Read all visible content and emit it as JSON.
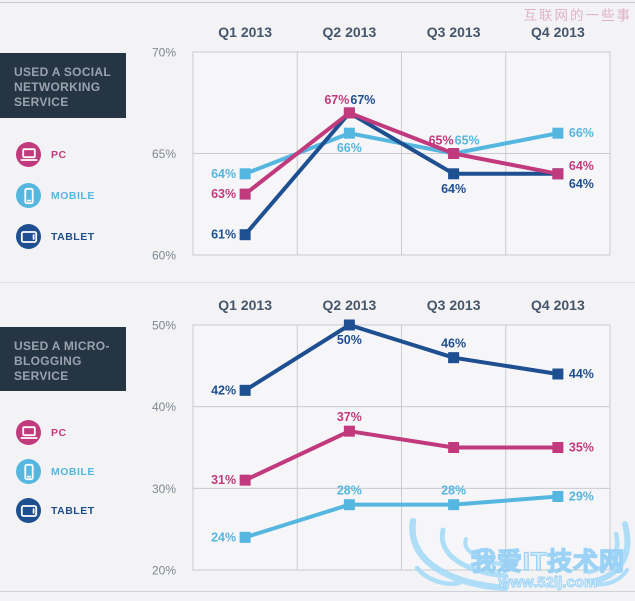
{
  "page": {
    "watermark_top": "互联网的一些事",
    "watermark_bottom_title": "我爱IT技术网",
    "watermark_bottom_url": "www.52ij.com"
  },
  "colors": {
    "pc": "#c23a7e",
    "mobile": "#55b6e0",
    "tablet": "#1e4f90",
    "panel_bg": "#263544",
    "panel_text": "#9aa2ad",
    "header": "#45566b",
    "axis": "#7e8791",
    "grid": "#c9cbce",
    "plot_bg": "#f6f6f8",
    "page_bg": "#f3f3f5",
    "watermark_pink": "#dfb3c3",
    "watermark_blue": "#8fcef5"
  },
  "legend": {
    "items": [
      {
        "id": "pc",
        "label": "PC"
      },
      {
        "id": "mobile",
        "label": "MOBILE"
      },
      {
        "id": "tablet",
        "label": "TABLET"
      }
    ]
  },
  "sections": [
    {
      "title_lines": [
        "USED A SOCIAL",
        "NETWORKING",
        "SERVICE"
      ]
    },
    {
      "title_lines": [
        "USED A MICRO-",
        "BLOGGING",
        "SERVICE"
      ]
    }
  ],
  "chart_data": [
    {
      "type": "line",
      "title": "USED A SOCIAL NETWORKING SERVICE",
      "categories": [
        "Q1 2013",
        "Q2 2013",
        "Q3 2013",
        "Q4 2013"
      ],
      "ylim": [
        60,
        70
      ],
      "yticks": [
        70,
        65,
        60
      ],
      "gridlines": [
        65
      ],
      "grid": true,
      "legend_position": "left",
      "series": [
        {
          "name": "PC",
          "color": "#c23a7e",
          "values": [
            63,
            67,
            65,
            64
          ],
          "label_pos": [
            "left",
            "above-left",
            "above-left",
            "right-up"
          ]
        },
        {
          "name": "MOBILE",
          "color": "#55b6e0",
          "values": [
            64,
            66,
            65,
            66
          ],
          "label_pos": [
            "left",
            "below",
            "above-right",
            "right"
          ]
        },
        {
          "name": "TABLET",
          "color": "#1e4f90",
          "values": [
            61,
            67,
            64,
            64
          ],
          "label_pos": [
            "left",
            "above-right",
            "below",
            "right-down"
          ]
        }
      ]
    },
    {
      "type": "line",
      "title": "USED A MICRO-BLOGGING SERVICE",
      "categories": [
        "Q1 2013",
        "Q2 2013",
        "Q3 2013",
        "Q4 2013"
      ],
      "ylim": [
        20,
        50
      ],
      "yticks": [
        50,
        40,
        30,
        20
      ],
      "gridlines": [
        40,
        30
      ],
      "grid": true,
      "legend_position": "left",
      "series": [
        {
          "name": "PC",
          "color": "#c23a7e",
          "values": [
            31,
            37,
            35,
            35
          ],
          "label_pos": [
            "left",
            "above",
            "none",
            "right"
          ]
        },
        {
          "name": "MOBILE",
          "color": "#55b6e0",
          "values": [
            24,
            28,
            28,
            29
          ],
          "label_pos": [
            "left",
            "above",
            "above",
            "right"
          ]
        },
        {
          "name": "TABLET",
          "color": "#1e4f90",
          "values": [
            42,
            50,
            46,
            44
          ],
          "label_pos": [
            "left",
            "below",
            "above",
            "right"
          ]
        }
      ]
    }
  ]
}
